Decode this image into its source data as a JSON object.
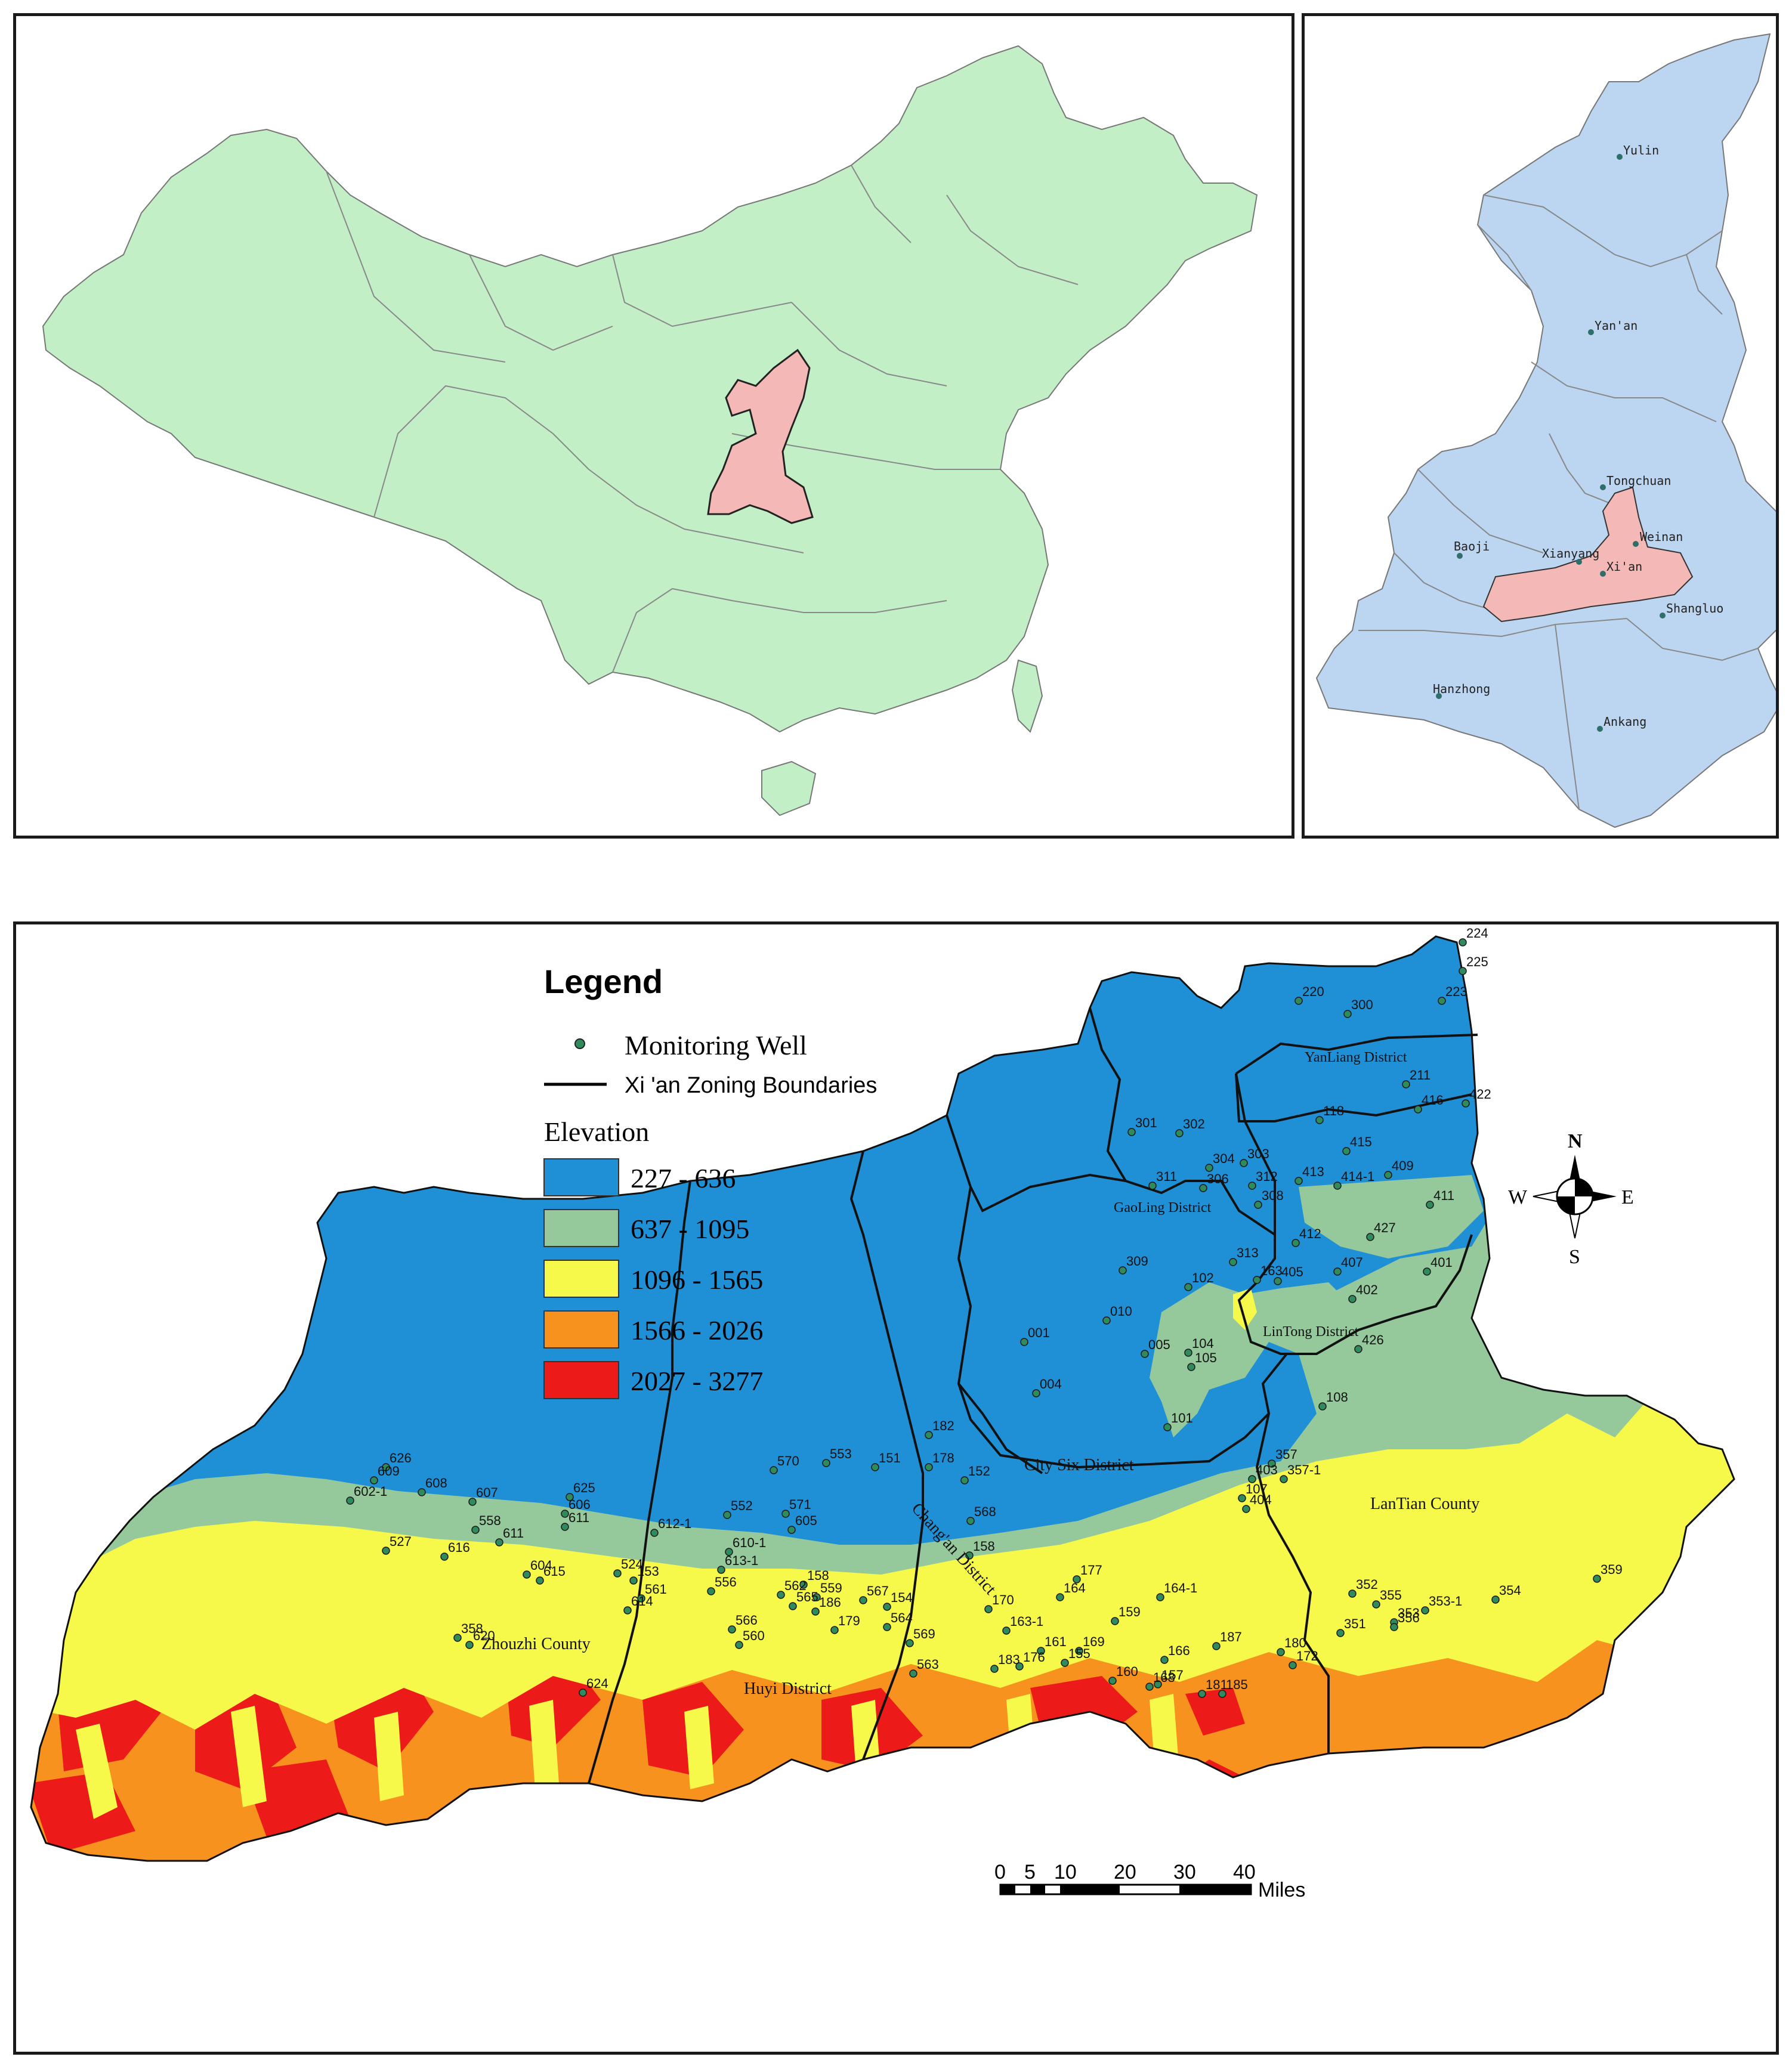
{
  "colors": {
    "china_fill": "#c3efc6",
    "shaanxi_fill": "#f4b8b6",
    "province_fill": "#bcd5f1",
    "elev_1": "#1f8fd6",
    "elev_2": "#95c99b",
    "elev_3": "#f6f84a",
    "elev_4": "#f7921f",
    "elev_5": "#ec1a18",
    "well_dot": "#2f8a5c"
  },
  "china_map": {
    "highlight": "Shaanxi province"
  },
  "shaanxi_map": {
    "cities": [
      {
        "name": "Yulin",
        "id": "yulin"
      },
      {
        "name": "Yan'an",
        "id": "yanan"
      },
      {
        "name": "Tongchuan",
        "id": "tongchuan"
      },
      {
        "name": "Baoji",
        "id": "baoji"
      },
      {
        "name": "Xianyang",
        "id": "xianyang"
      },
      {
        "name": "Xi'an",
        "id": "xian"
      },
      {
        "name": "Weinan",
        "id": "weinan"
      },
      {
        "name": "Shangluo",
        "id": "shangluo"
      },
      {
        "name": "Hanzhong",
        "id": "hanzhong"
      },
      {
        "name": "Ankang",
        "id": "ankang"
      }
    ]
  },
  "legend": {
    "title": "Legend",
    "well_label": "Monitoring Well",
    "boundary_label": "Xi 'an Zoning Boundaries",
    "elevation_title": "Elevation",
    "elevation_classes": [
      {
        "range": "227 - 636",
        "color": "#1f8fd6"
      },
      {
        "range": "637 - 1095",
        "color": "#95c99b"
      },
      {
        "range": "1096 - 1565",
        "color": "#f6f84a"
      },
      {
        "range": "1566 - 2026",
        "color": "#f7921f"
      },
      {
        "range": "2027 - 3277",
        "color": "#ec1a18"
      }
    ]
  },
  "compass": {
    "n": "N",
    "s": "S",
    "e": "E",
    "w": "W"
  },
  "scale_bar": {
    "ticks": [
      "0",
      "5",
      "10",
      "20",
      "30",
      "40"
    ],
    "unit": "Miles"
  },
  "districts": [
    {
      "name": "YanLiang District"
    },
    {
      "name": "GaoLing District"
    },
    {
      "name": "LinTong District"
    },
    {
      "name": "City Six District"
    },
    {
      "name": "LanTian County"
    },
    {
      "name": "Chang'an District"
    },
    {
      "name": "Huyi District"
    },
    {
      "name": "Zhouzhi County"
    }
  ],
  "wells": [
    "224",
    "225",
    "220",
    "300",
    "223",
    "211",
    "422",
    "118",
    "416",
    "301",
    "302",
    "304",
    "303",
    "415",
    "409",
    "311",
    "306",
    "312",
    "413",
    "414-1",
    "308",
    "411",
    "412",
    "427",
    "309",
    "313",
    "163",
    "405",
    "407",
    "401",
    "102",
    "402",
    "010",
    "001",
    "005",
    "104",
    "105",
    "426",
    "004",
    "108",
    "101",
    "357",
    "182",
    "151",
    "178",
    "152",
    "107",
    "403",
    "404",
    "357-1",
    "626",
    "570",
    "553",
    "609",
    "608",
    "602-1",
    "607",
    "625",
    "611",
    "552",
    "571",
    "606",
    "612-1",
    "605",
    "558",
    "610-1",
    "527",
    "616",
    "611",
    "604",
    "615",
    "524",
    "153",
    "561",
    "614",
    "613-1",
    "556",
    "158",
    "562",
    "559",
    "565",
    "186",
    "566",
    "560",
    "179",
    "567",
    "564",
    "154",
    "158",
    "177",
    "164",
    "164-1",
    "170",
    "159",
    "163-1",
    "161",
    "169",
    "183",
    "176",
    "155",
    "160",
    "157",
    "187",
    "166",
    "181",
    "185",
    "168",
    "180",
    "172",
    "351",
    "353",
    "352",
    "355",
    "356",
    "353-1",
    "354",
    "359",
    "358",
    "620",
    "624",
    "563",
    "569",
    "568"
  ]
}
